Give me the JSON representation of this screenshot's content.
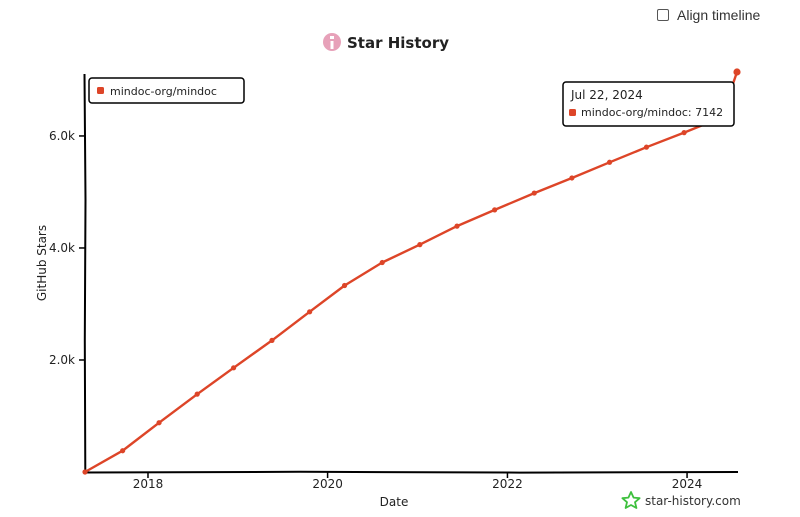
{
  "controls": {
    "align_timeline_label": "Align timeline",
    "align_timeline_checked": false
  },
  "watermark": {
    "text": "star-history.com",
    "icon": "star-icon"
  },
  "colors": {
    "series": "#dd4528",
    "axis": "#000000",
    "logo": "#e7a1b9",
    "watermark_icon": "#3ec03e"
  },
  "chart_data": {
    "type": "line",
    "title": "Star History",
    "xlabel": "Date",
    "ylabel": "GitHub Stars",
    "x_range": [
      "2017-04-20",
      "2024-07-22"
    ],
    "ylim": [
      0,
      7142
    ],
    "x_ticks": [
      "2018",
      "2020",
      "2022",
      "2024"
    ],
    "y_ticks": [
      {
        "value": 2000,
        "label": "2.0k"
      },
      {
        "value": 4000,
        "label": "4.0k"
      },
      {
        "value": 6000,
        "label": "6.0k"
      }
    ],
    "legend": {
      "placement": "top-left"
    },
    "series": [
      {
        "name": "mindoc-org/mindoc",
        "points": [
          {
            "x": "2017-04-20",
            "y": 0
          },
          {
            "x": "2017-09-20",
            "y": 380
          },
          {
            "x": "2018-02-15",
            "y": 880
          },
          {
            "x": "2018-07-20",
            "y": 1390
          },
          {
            "x": "2018-12-15",
            "y": 1860
          },
          {
            "x": "2019-05-20",
            "y": 2350
          },
          {
            "x": "2019-10-20",
            "y": 2860
          },
          {
            "x": "2020-03-10",
            "y": 3330
          },
          {
            "x": "2020-08-10",
            "y": 3740
          },
          {
            "x": "2021-01-10",
            "y": 4060
          },
          {
            "x": "2021-06-10",
            "y": 4390
          },
          {
            "x": "2021-11-10",
            "y": 4680
          },
          {
            "x": "2022-04-20",
            "y": 4980
          },
          {
            "x": "2022-09-20",
            "y": 5250
          },
          {
            "x": "2023-02-20",
            "y": 5530
          },
          {
            "x": "2023-07-20",
            "y": 5800
          },
          {
            "x": "2023-12-20",
            "y": 6060
          },
          {
            "x": "2024-05-20",
            "y": 6330
          },
          {
            "x": "2024-07-22",
            "y": 7142
          }
        ]
      }
    ],
    "tooltip": {
      "date": "Jul 22, 2024",
      "text": "mindoc-org/mindoc: 7142"
    }
  }
}
